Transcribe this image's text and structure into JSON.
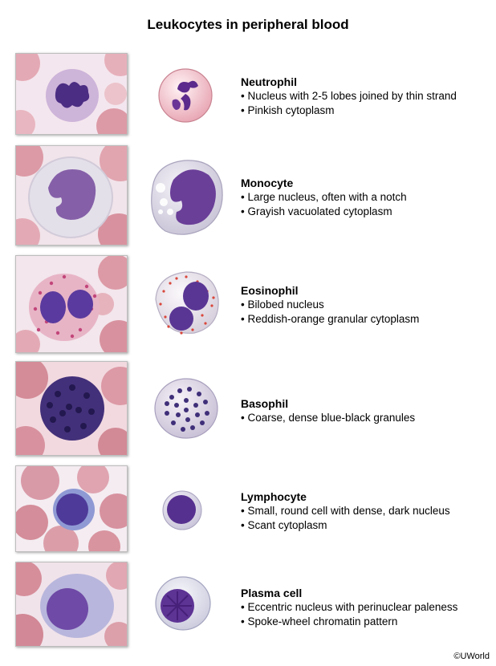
{
  "title": "Leukocytes in peripheral blood",
  "cells": [
    {
      "name": "Neutrophil",
      "bullets": [
        "Nucleus with 2-5 lobes joined by thin strand",
        "Pinkish cytoplasm"
      ]
    },
    {
      "name": "Monocyte",
      "bullets": [
        "Large nucleus, often with a notch",
        "Grayish vacuolated cytoplasm"
      ]
    },
    {
      "name": "Eosinophil",
      "bullets": [
        "Bilobed nucleus",
        "Reddish-orange granular cytoplasm"
      ]
    },
    {
      "name": "Basophil",
      "bullets": [
        "Coarse, dense blue-black granules"
      ]
    },
    {
      "name": "Lymphocyte",
      "bullets": [
        "Small, round cell with dense, dark nucleus",
        "Scant cytoplasm"
      ]
    },
    {
      "name": "Plasma cell",
      "bullets": [
        "Eccentric nucleus with perinuclear paleness",
        "Spoke-wheel chromatin pattern"
      ]
    }
  ],
  "copyright": "©UWorld",
  "colors": {
    "rbc": "#d9909a",
    "nucleus": "#5b2e86",
    "background": "#f3dfe6"
  }
}
